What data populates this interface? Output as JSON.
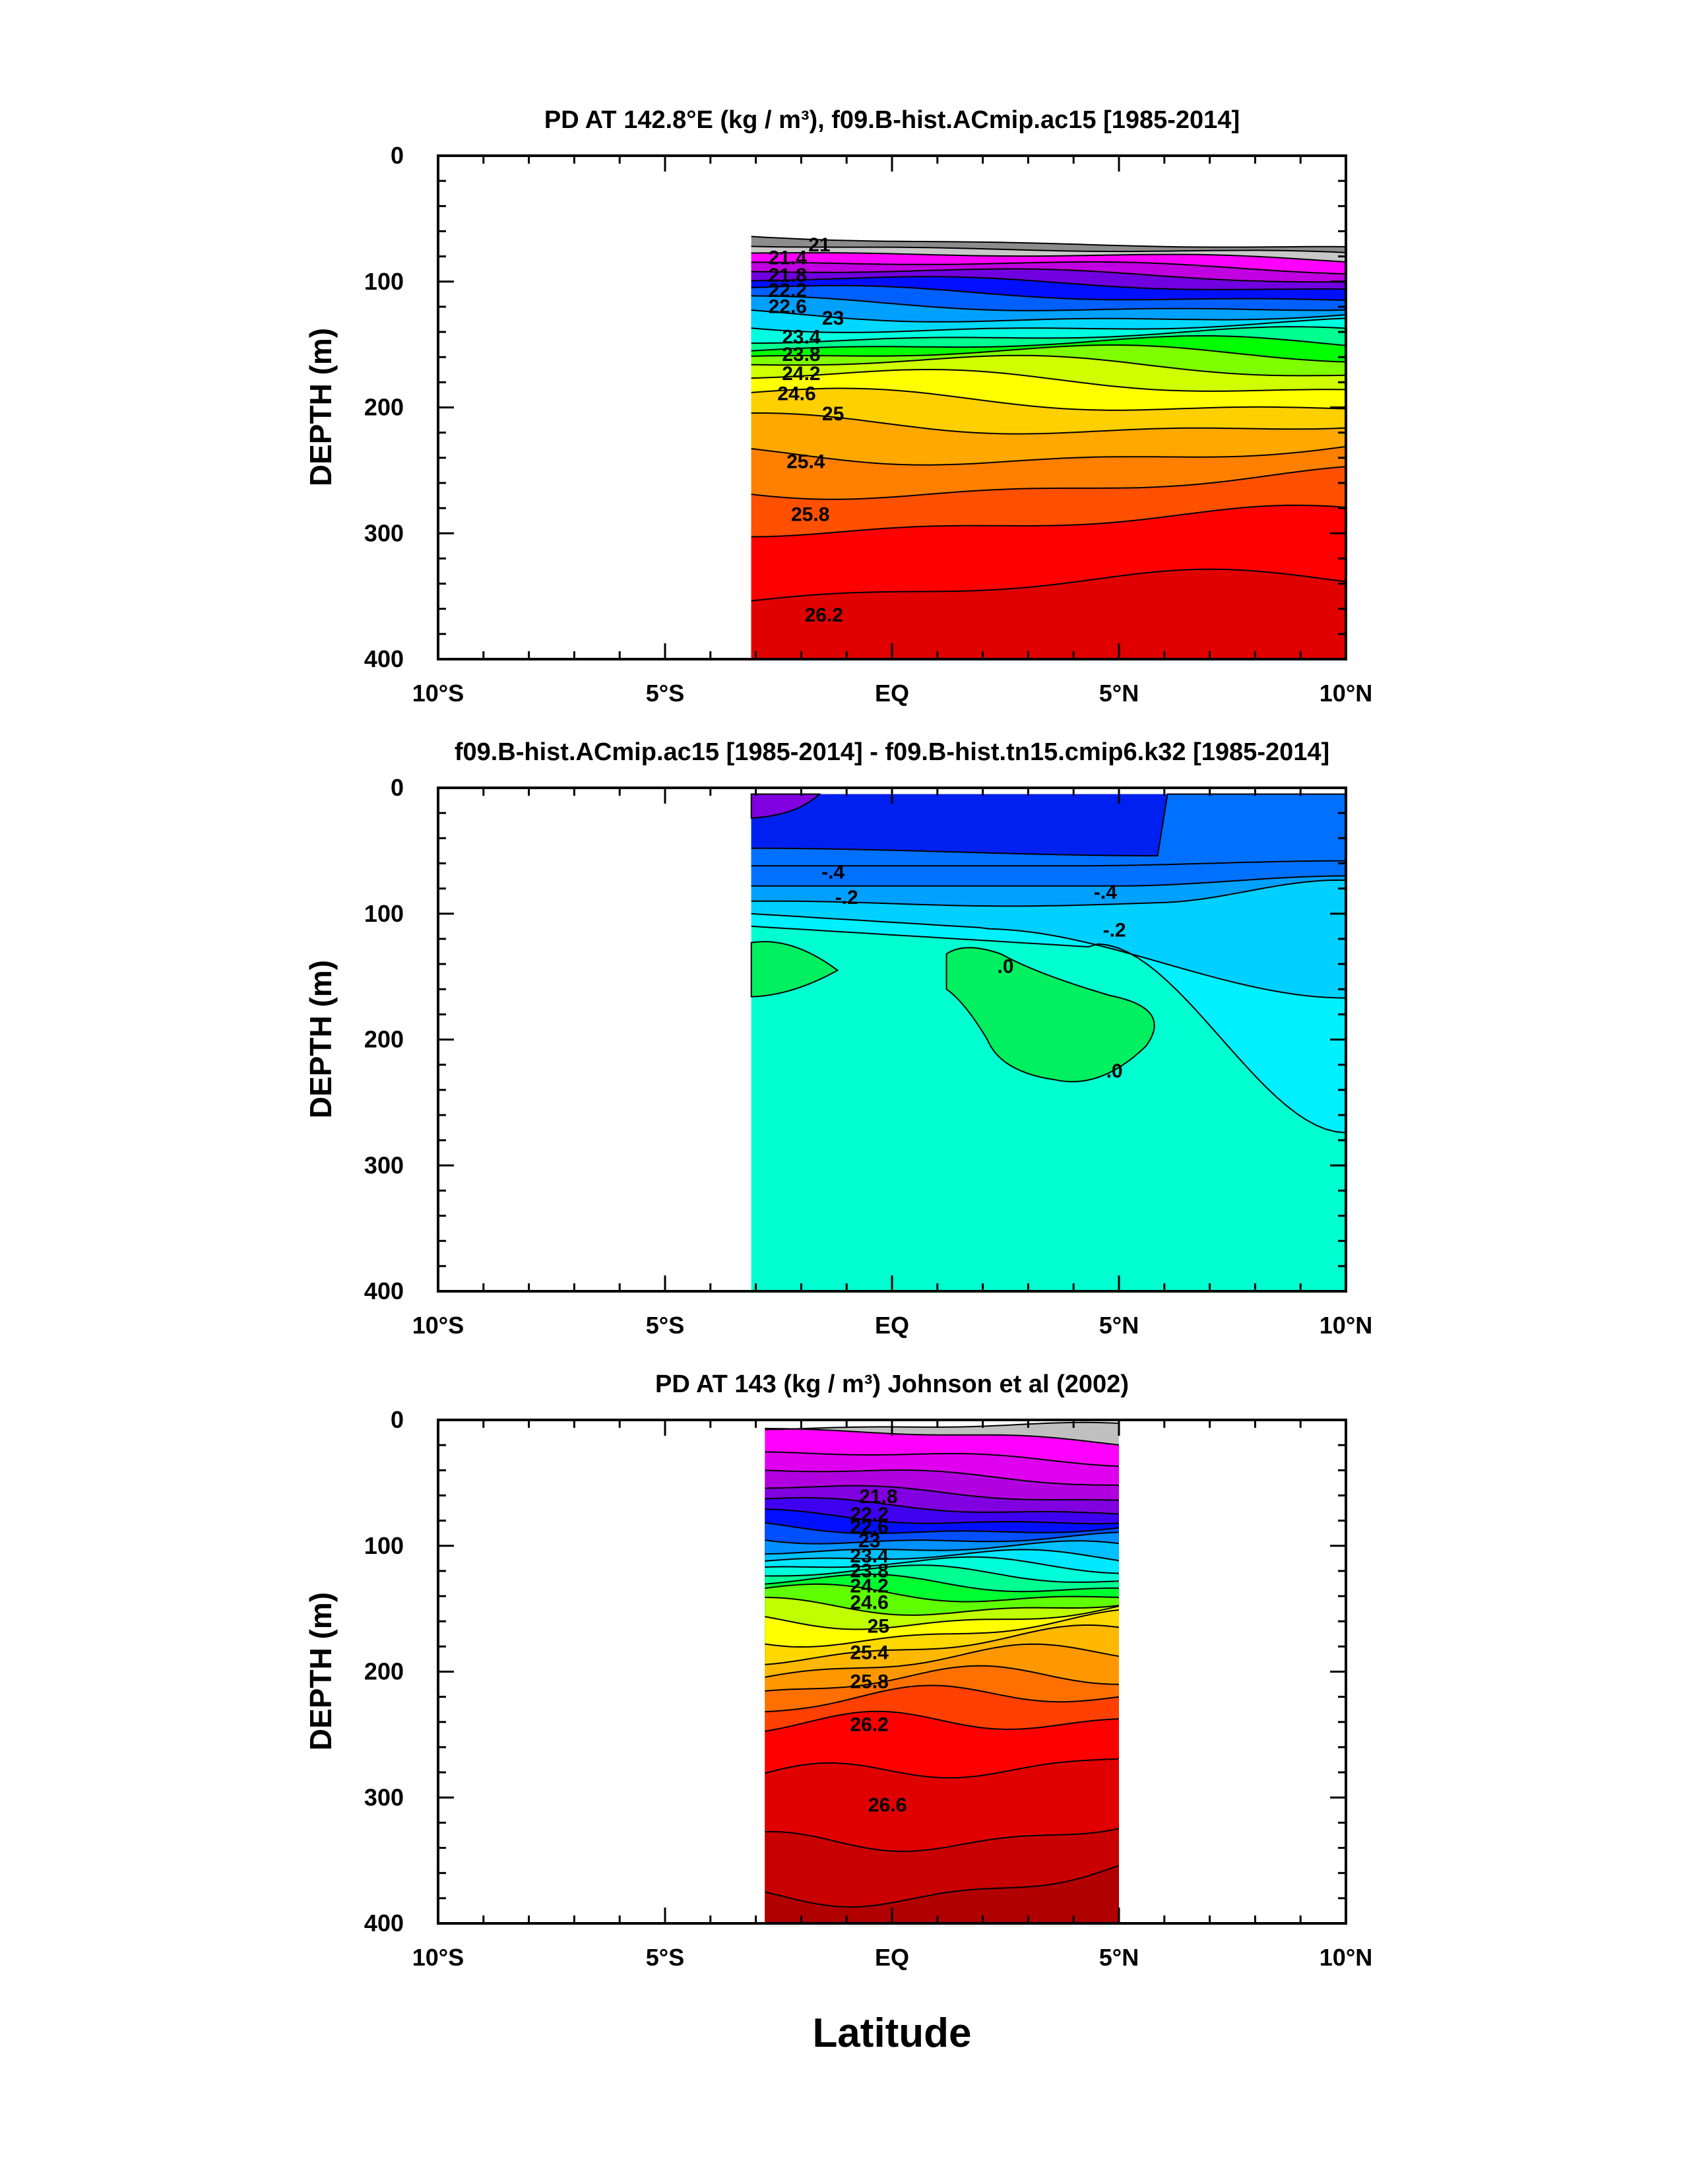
{
  "x_axis_label": "Latitude",
  "chart_data": [
    {
      "type": "contour",
      "title": "PD AT 142.8°E (kg / m³), f09.B-hist.ACmip.ac15 [1985-2014]",
      "ylabel": "DEPTH (m)",
      "xlabel": "Latitude",
      "xlim": [
        -10,
        10
      ],
      "ylim": [
        400,
        0
      ],
      "x_ticks": [
        -10,
        -5,
        0,
        5,
        10
      ],
      "x_tick_labels": [
        "10°S",
        "5°S",
        "EQ",
        "5°N",
        "10°N"
      ],
      "y_ticks": [
        0,
        100,
        200,
        300,
        400
      ],
      "y_tick_labels": [
        "0",
        "100",
        "200",
        "300",
        "400"
      ],
      "data_extent_lat": [
        -3.1,
        10
      ],
      "contour_interval": 0.2,
      "contour_labels": [
        "21",
        "21.4",
        "21.8",
        "22.2",
        "22.6",
        "23",
        "23.4",
        "23.8",
        "24.2",
        "24.6",
        "25",
        "25.4",
        "25.8",
        "26.2"
      ],
      "bands": [
        {
          "depth_top_left": 63,
          "depth_top_right": 75,
          "color": "#8c8c8c"
        },
        {
          "depth_top_left": 69,
          "depth_top_right": 80,
          "color": "#c8c8c8"
        },
        {
          "depth_top_left": 75,
          "depth_top_right": 85,
          "color": "#ff00ff"
        },
        {
          "depth_top_left": 84,
          "depth_top_right": 92,
          "color": "#c000e0"
        },
        {
          "depth_top_left": 92,
          "depth_top_right": 98,
          "color": "#7000e0"
        },
        {
          "depth_top_left": 100,
          "depth_top_right": 104,
          "color": "#0010ff"
        },
        {
          "depth_top_left": 108,
          "depth_top_right": 112,
          "color": "#0060ff"
        },
        {
          "depth_top_left": 117,
          "depth_top_right": 120,
          "color": "#00a0ff"
        },
        {
          "depth_top_left": 126,
          "depth_top_right": 128,
          "color": "#00d8ff"
        },
        {
          "depth_top_left": 134,
          "depth_top_right": 136,
          "color": "#00ffe0"
        },
        {
          "depth_top_left": 142,
          "depth_top_right": 144,
          "color": "#00ff90"
        },
        {
          "depth_top_left": 150,
          "depth_top_right": 152,
          "color": "#00ff00"
        },
        {
          "depth_top_left": 158,
          "depth_top_right": 160,
          "color": "#80ff00"
        },
        {
          "depth_top_left": 166,
          "depth_top_right": 170,
          "color": "#d0ff00"
        },
        {
          "depth_top_left": 178,
          "depth_top_right": 182,
          "color": "#ffff00"
        },
        {
          "depth_top_left": 194,
          "depth_top_right": 196,
          "color": "#ffd000"
        },
        {
          "depth_top_left": 214,
          "depth_top_right": 212,
          "color": "#ffa800"
        },
        {
          "depth_top_left": 238,
          "depth_top_right": 234,
          "color": "#ff8000"
        },
        {
          "depth_top_left": 264,
          "depth_top_right": 258,
          "color": "#ff5000"
        },
        {
          "depth_top_left": 292,
          "depth_top_right": 290,
          "color": "#ff0000"
        },
        {
          "depth_top_left": 346,
          "depth_top_right": 340,
          "color": "#e00000"
        }
      ]
    },
    {
      "type": "contour",
      "title": "f09.B-hist.ACmip.ac15 [1985-2014] - f09.B-hist.tn15.cmip6.k32 [1985-2014]",
      "ylabel": "DEPTH (m)",
      "xlabel": "Latitude",
      "xlim": [
        -10,
        10
      ],
      "ylim": [
        400,
        0
      ],
      "x_ticks": [
        -10,
        -5,
        0,
        5,
        10
      ],
      "x_tick_labels": [
        "10°S",
        "5°S",
        "EQ",
        "5°N",
        "10°N"
      ],
      "y_ticks": [
        0,
        100,
        200,
        300,
        400
      ],
      "y_tick_labels": [
        "0",
        "100",
        "200",
        "300",
        "400"
      ],
      "data_extent_lat": [
        -3.1,
        10
      ],
      "contour_interval": 0.1,
      "contour_labels": [
        "-.4",
        "-.2",
        "-.4",
        "-.2",
        ".0",
        ".0"
      ],
      "region_colors": {
        "strong_negative": "#8000e0",
        "minus_0_5": "#0020f0",
        "minus_0_4": "#0070ff",
        "minus_0_3": "#00a0ff",
        "minus_0_2": "#00d0ff",
        "minus_0_1": "#00f0ff",
        "zero": "#00ffd0",
        "positive": "#00f060"
      }
    },
    {
      "type": "contour",
      "title": "PD AT 143 (kg / m³) Johnson et al (2002)",
      "ylabel": "DEPTH (m)",
      "xlabel": "Latitude",
      "xlim": [
        -10,
        10
      ],
      "ylim": [
        400,
        0
      ],
      "x_ticks": [
        -10,
        -5,
        0,
        5,
        10
      ],
      "x_tick_labels": [
        "10°S",
        "5°S",
        "EQ",
        "5°N",
        "10°N"
      ],
      "y_ticks": [
        0,
        100,
        200,
        300,
        400
      ],
      "y_tick_labels": [
        "0",
        "100",
        "200",
        "300",
        "400"
      ],
      "data_extent_lat": [
        -2.8,
        5
      ],
      "contour_interval": 0.2,
      "contour_labels": [
        "21.8",
        "22.2",
        "22.6",
        "23",
        "23.4",
        "23.8",
        "24.2",
        "24.6",
        "25",
        "25.4",
        "25.8",
        "26.2",
        "26.6"
      ],
      "bands": [
        {
          "depth_top_left": 5,
          "depth_top_right": 5,
          "color": "#c0c0c0"
        },
        {
          "depth_top_left": 5,
          "depth_top_right": 20,
          "color": "#ff00ff"
        },
        {
          "depth_top_left": 25,
          "depth_top_right": 35,
          "color": "#e000f0"
        },
        {
          "depth_top_left": 40,
          "depth_top_right": 50,
          "color": "#b000e0"
        },
        {
          "depth_top_left": 55,
          "depth_top_right": 62,
          "color": "#8000e0"
        },
        {
          "depth_top_left": 66,
          "depth_top_right": 72,
          "color": "#4000f0"
        },
        {
          "depth_top_left": 76,
          "depth_top_right": 80,
          "color": "#0010ff"
        },
        {
          "depth_top_left": 84,
          "depth_top_right": 88,
          "color": "#0050ff"
        },
        {
          "depth_top_left": 92,
          "depth_top_right": 96,
          "color": "#0090ff"
        },
        {
          "depth_top_left": 100,
          "depth_top_right": 104,
          "color": "#00c0ff"
        },
        {
          "depth_top_left": 108,
          "depth_top_right": 112,
          "color": "#00e8ff"
        },
        {
          "depth_top_left": 116,
          "depth_top_right": 118,
          "color": "#00ffd8"
        },
        {
          "depth_top_left": 124,
          "depth_top_right": 124,
          "color": "#00ff90"
        },
        {
          "depth_top_left": 132,
          "depth_top_right": 130,
          "color": "#00ff30"
        },
        {
          "depth_top_left": 140,
          "depth_top_right": 136,
          "color": "#60ff00"
        },
        {
          "depth_top_left": 150,
          "depth_top_right": 144,
          "color": "#c0ff00"
        },
        {
          "depth_top_left": 160,
          "depth_top_right": 152,
          "color": "#ffff00"
        },
        {
          "depth_top_left": 172,
          "depth_top_right": 162,
          "color": "#ffd800"
        },
        {
          "depth_top_left": 184,
          "depth_top_right": 174,
          "color": "#ffb800"
        },
        {
          "depth_top_left": 198,
          "depth_top_right": 188,
          "color": "#ff9800"
        },
        {
          "depth_top_left": 214,
          "depth_top_right": 204,
          "color": "#ff7000"
        },
        {
          "depth_top_left": 232,
          "depth_top_right": 214,
          "color": "#ff4000"
        },
        {
          "depth_top_left": 250,
          "depth_top_right": 232,
          "color": "#ff0000"
        },
        {
          "depth_top_left": 290,
          "depth_top_right": 262,
          "color": "#e00000"
        },
        {
          "depth_top_left": 340,
          "depth_top_right": 320,
          "color": "#c80000"
        },
        {
          "depth_top_left": 380,
          "depth_top_right": 360,
          "color": "#b00000"
        }
      ]
    }
  ]
}
